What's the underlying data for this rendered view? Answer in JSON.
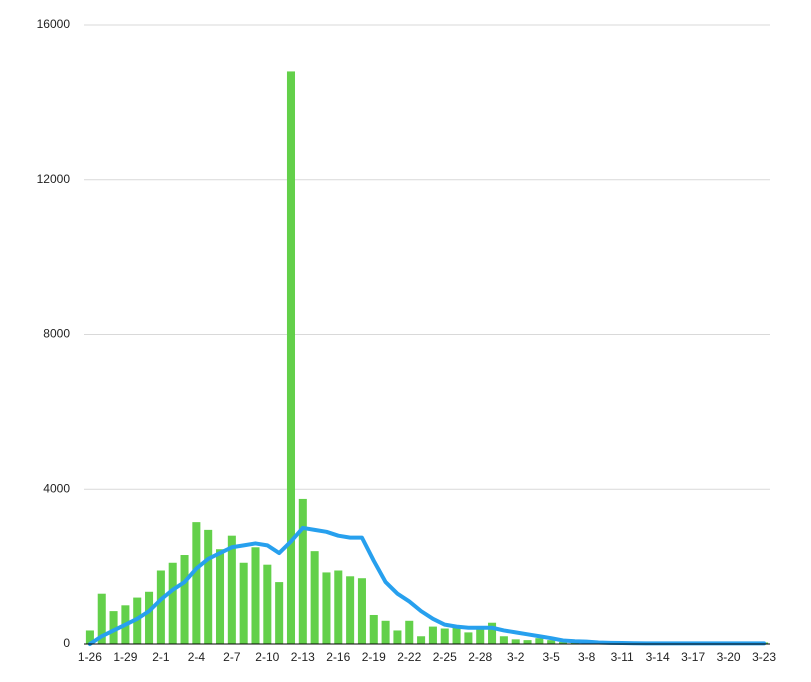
{
  "chart_data": {
    "type": "bar",
    "categories": [
      "1-26",
      null,
      null,
      "1-29",
      null,
      null,
      "2-1",
      null,
      null,
      "2-4",
      null,
      null,
      "2-7",
      null,
      null,
      "2-10",
      null,
      null,
      "2-13",
      null,
      null,
      "2-16",
      null,
      null,
      "2-19",
      null,
      null,
      "2-22",
      null,
      null,
      "2-25",
      null,
      null,
      "2-28",
      null,
      null,
      "3-2",
      null,
      null,
      "3-5",
      null,
      null,
      "3-8",
      null,
      null,
      "3-11",
      null,
      null,
      "3-14",
      null,
      null,
      "3-17",
      null,
      null,
      "3-20",
      null,
      null,
      "3-23"
    ],
    "series": [
      {
        "type": "bar",
        "color": "#63d04a",
        "values": [
          350,
          1300,
          850,
          1000,
          1200,
          1350,
          1900,
          2100,
          2300,
          3150,
          2950,
          2450,
          2800,
          2100,
          2500,
          2050,
          1600,
          14800,
          3750,
          2400,
          1850,
          1900,
          1750,
          1700,
          750,
          600,
          350,
          600,
          200,
          450,
          400,
          450,
          300,
          420,
          550,
          200,
          120,
          100,
          150,
          100,
          50,
          40,
          30,
          30,
          20,
          20,
          20,
          20,
          30,
          40,
          40,
          40,
          40,
          40,
          50,
          50,
          40,
          40
        ]
      },
      {
        "type": "line",
        "color": "#27a0ee",
        "values": [
          0,
          200,
          350,
          500,
          650,
          850,
          1150,
          1400,
          1600,
          1950,
          2200,
          2350,
          2500,
          2550,
          2600,
          2550,
          2350,
          2650,
          3000,
          2950,
          2900,
          2800,
          2750,
          2750,
          2150,
          1600,
          1300,
          1100,
          850,
          650,
          500,
          450,
          420,
          420,
          420,
          350,
          300,
          250,
          200,
          150,
          90,
          70,
          60,
          40,
          30,
          25,
          20,
          15,
          15,
          15,
          15,
          15,
          15,
          15,
          15,
          15,
          15,
          15
        ]
      }
    ],
    "ylim": [
      0,
      16000
    ],
    "yticks": [
      0,
      4000,
      8000,
      12000,
      16000
    ],
    "grid": true
  }
}
